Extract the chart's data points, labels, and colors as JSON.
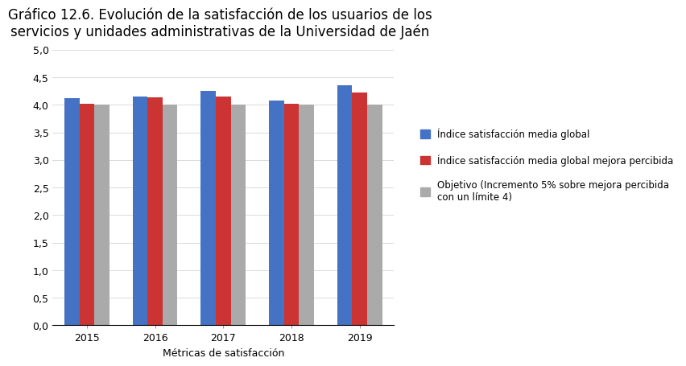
{
  "title": "Gráfico 12.6. Evolución de la satisfacción de los usuarios de los\nservicios y unidades administrativas de la Universidad de Jaén",
  "xlabel": "Métricas de satisfacción",
  "ylabel": "",
  "years": [
    "2015",
    "2016",
    "2017",
    "2018",
    "2019"
  ],
  "series": {
    "blue": {
      "label": "Índice satisfacción media global",
      "color": "#4472C4",
      "values": [
        4.12,
        4.15,
        4.25,
        4.07,
        4.35
      ]
    },
    "red": {
      "label": "Índice satisfacción media global mejora percibida",
      "color": "#CC3333",
      "values": [
        4.02,
        4.13,
        4.15,
        4.02,
        4.22
      ]
    },
    "gray": {
      "label": "Objetivo (Incremento 5% sobre mejora percibida\ncon un límite 4)",
      "color": "#AAAAAA",
      "values": [
        4.0,
        4.0,
        4.0,
        4.0,
        4.0
      ]
    }
  },
  "ylim": [
    0,
    5.0
  ],
  "yticks": [
    0.0,
    0.5,
    1.0,
    1.5,
    2.0,
    2.5,
    3.0,
    3.5,
    4.0,
    4.5,
    5.0
  ],
  "ytick_labels": [
    "0,0",
    "0,5",
    "1,0",
    "1,5",
    "2,0",
    "2,5",
    "3,0",
    "3,5",
    "4,0",
    "4,5",
    "5,0"
  ],
  "bar_width": 0.22,
  "background_color": "#FFFFFF",
  "title_fontsize": 12,
  "axis_fontsize": 9,
  "tick_fontsize": 9,
  "legend_fontsize": 8.5
}
